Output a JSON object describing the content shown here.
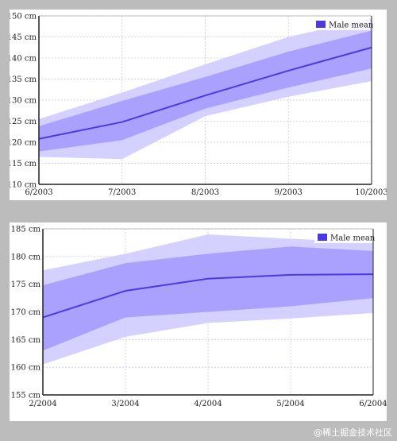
{
  "chart_data": [
    {
      "type": "area",
      "x": [
        "6/2003",
        "7/2003",
        "8/2003",
        "9/2003",
        "10/2003"
      ],
      "ylim": [
        110,
        150
      ],
      "yticks": [
        110,
        115,
        120,
        125,
        130,
        135,
        140,
        145,
        150
      ],
      "yunit": "cm",
      "grid": true,
      "legend": {
        "position": "top-right",
        "label": "Male mean"
      },
      "colors": {
        "line": "#4a3ae0",
        "band_inner": "#a59bff",
        "band_outer": "#cfcbff"
      },
      "series": [
        {
          "name": "Male mean",
          "values": [
            120.8,
            124.8,
            131.1,
            137.0,
            142.5
          ]
        }
      ],
      "bands": [
        {
          "lower": [
            116.5,
            116.0,
            126.2,
            130.8,
            134.5
          ],
          "upper": [
            125.5,
            131.8,
            138.5,
            145.0,
            149.5
          ]
        },
        {
          "lower": [
            117.8,
            120.5,
            128.0,
            133.0,
            137.5
          ],
          "upper": [
            123.8,
            129.8,
            135.5,
            141.5,
            146.5
          ]
        }
      ]
    },
    {
      "type": "area",
      "x": [
        "2/2004",
        "3/2004",
        "4/2004",
        "5/2004",
        "6/2004"
      ],
      "ylim": [
        155,
        185
      ],
      "yticks": [
        155,
        160,
        165,
        170,
        175,
        180,
        185
      ],
      "yunit": "cm",
      "grid": true,
      "legend": {
        "position": "top-right",
        "label": "Male mean"
      },
      "colors": {
        "line": "#4a3ae0",
        "band_inner": "#a59bff",
        "band_outer": "#cfcbff"
      },
      "series": [
        {
          "name": "Male mean",
          "values": [
            169.0,
            173.8,
            176.0,
            176.7,
            176.8
          ]
        }
      ],
      "bands": [
        {
          "lower": [
            160.5,
            165.5,
            168.0,
            168.8,
            169.8
          ],
          "upper": [
            177.5,
            180.5,
            184.0,
            183.2,
            182.5
          ]
        },
        {
          "lower": [
            163.0,
            169.0,
            170.0,
            171.0,
            172.5
          ],
          "upper": [
            174.8,
            178.8,
            180.5,
            181.8,
            181.0
          ]
        }
      ]
    }
  ],
  "watermark": "@稀土掘金技术社区"
}
